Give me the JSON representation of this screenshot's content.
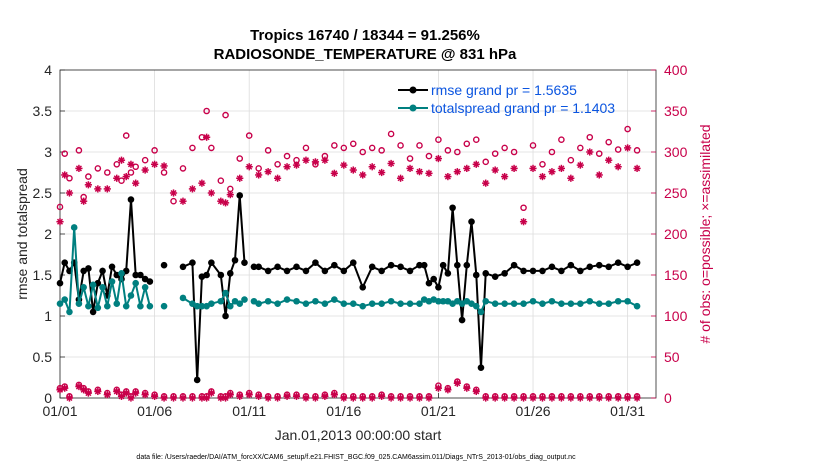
{
  "chart_data": {
    "type": "line",
    "title": "Tropics 16740 / 18344 = 91.256%",
    "subtitle": "RADIOSONDE_TEMPERATURE @ 831 hPa",
    "xlabel": "Jan.01,2013 00:00:00 start",
    "ylabel": "rmse and totalspread",
    "ylabel_right": "# of obs: o=possible; ×=assimilated",
    "footnote": "data file: /Users/raeder/DAI/ATM_forcXX/CAM6_setup/f.e21.FHIST_BGC.f09_025.CAM6assim.011/Diags_NTrS_2013-01/obs_diag_output.nc",
    "xlim": [
      1,
      32.5
    ],
    "ylim": [
      0,
      4
    ],
    "ylim_right": [
      0,
      400
    ],
    "xticks": [
      1,
      6,
      11,
      16,
      21,
      26,
      31
    ],
    "xtick_labels": [
      "01/01",
      "01/06",
      "01/11",
      "01/16",
      "01/21",
      "01/26",
      "01/31"
    ],
    "yticks": [
      0,
      0.5,
      1,
      1.5,
      2,
      2.5,
      3,
      3.5,
      4
    ],
    "ytick_labels": [
      "0",
      "0.5",
      "1",
      "1.5",
      "2",
      "2.5",
      "3",
      "3.5",
      "4"
    ],
    "yticks_right": [
      0,
      50,
      100,
      150,
      200,
      250,
      300,
      350,
      400
    ],
    "ytick_labels_right": [
      "0",
      "50",
      "100",
      "150",
      "200",
      "250",
      "300",
      "350",
      "400"
    ],
    "grid": true,
    "legend_position": "top-right",
    "colors": {
      "rmse": "#000000",
      "spread": "#008080",
      "obs": "#c8004a",
      "legend_text": "#0b55e0"
    },
    "series": [
      {
        "name": "rmse grand pr = 1.5635",
        "axis": "left",
        "x": [
          1,
          1.25,
          1.5,
          1.75,
          2,
          2.25,
          2.5,
          2.75,
          3,
          3.25,
          3.5,
          3.75,
          4,
          4.25,
          4.5,
          4.75,
          5,
          5.25,
          5.5,
          5.75,
          6,
          6.5,
          7,
          7.5,
          8,
          8.25,
          8.5,
          8.75,
          9,
          9.5,
          9.75,
          10,
          10.25,
          10.5,
          10.75,
          11,
          11.25,
          11.5,
          12,
          12.5,
          13,
          13.5,
          14,
          14.5,
          15,
          15.5,
          16,
          16.5,
          17,
          17.5,
          18,
          18.5,
          19,
          19.5,
          20,
          20.25,
          20.5,
          20.75,
          21,
          21.25,
          21.5,
          21.75,
          22,
          22.25,
          22.5,
          22.75,
          23,
          23.25,
          23.5,
          24,
          24.5,
          25,
          25.5,
          26,
          26.5,
          27,
          27.5,
          28,
          28.5,
          29,
          29.5,
          30,
          30.5,
          31,
          31.5
        ],
        "values": [
          1.4,
          1.65,
          1.55,
          1.65,
          1.2,
          1.55,
          1.58,
          1.05,
          1.4,
          1.55,
          1.25,
          1.6,
          1.5,
          1.45,
          1.55,
          2.42,
          1.5,
          1.5,
          1.45,
          1.42,
          null,
          1.62,
          null,
          1.6,
          1.65,
          0.22,
          1.48,
          1.5,
          1.65,
          1.5,
          1.0,
          1.52,
          1.68,
          2.47,
          1.65,
          null,
          1.6,
          1.6,
          1.55,
          1.6,
          1.55,
          1.6,
          1.55,
          1.65,
          1.55,
          1.62,
          1.55,
          1.65,
          1.35,
          1.6,
          1.55,
          1.62,
          1.6,
          1.55,
          1.62,
          1.62,
          1.4,
          1.45,
          1.35,
          1.62,
          1.52,
          2.32,
          1.62,
          0.95,
          1.62,
          2.15,
          1.5,
          0.37,
          1.52,
          1.48,
          1.52,
          1.62,
          1.55,
          1.55,
          1.55,
          1.6,
          1.55,
          1.62,
          1.55,
          1.6,
          1.62,
          1.6,
          1.65,
          1.6,
          1.65
        ]
      },
      {
        "name": "totalspread grand pr = 1.1403",
        "axis": "left",
        "x": [
          1,
          1.25,
          1.5,
          1.75,
          2,
          2.25,
          2.5,
          2.75,
          3,
          3.25,
          3.5,
          3.75,
          4,
          4.25,
          4.5,
          4.75,
          5,
          5.25,
          5.5,
          5.75,
          6,
          6.5,
          7,
          7.5,
          8,
          8.25,
          8.5,
          8.75,
          9,
          9.5,
          9.75,
          10,
          10.25,
          10.5,
          10.75,
          11,
          11.25,
          11.5,
          12,
          12.5,
          13,
          13.5,
          14,
          14.5,
          15,
          15.5,
          16,
          16.5,
          17,
          17.5,
          18,
          18.5,
          19,
          19.5,
          20,
          20.25,
          20.5,
          20.75,
          21,
          21.25,
          21.5,
          21.75,
          22,
          22.25,
          22.5,
          22.75,
          23,
          23.25,
          23.5,
          24,
          24.5,
          25,
          25.5,
          26,
          26.5,
          27,
          27.5,
          28,
          28.5,
          29,
          29.5,
          30,
          30.5,
          31,
          31.5
        ],
        "values": [
          1.15,
          1.2,
          1.05,
          2.08,
          1.15,
          1.35,
          1.12,
          1.38,
          1.1,
          1.35,
          1.12,
          1.42,
          1.15,
          1.52,
          1.12,
          1.25,
          1.4,
          1.12,
          1.35,
          1.12,
          null,
          1.12,
          null,
          1.22,
          1.15,
          1.12,
          1.12,
          1.12,
          1.15,
          1.18,
          1.28,
          1.12,
          1.18,
          1.15,
          1.2,
          null,
          1.18,
          1.15,
          1.18,
          1.15,
          1.2,
          1.18,
          1.15,
          1.18,
          1.15,
          1.2,
          1.15,
          1.15,
          1.12,
          1.15,
          1.15,
          1.18,
          1.15,
          1.15,
          1.15,
          1.2,
          1.18,
          1.2,
          1.18,
          1.18,
          1.18,
          1.15,
          1.18,
          1.15,
          1.18,
          1.15,
          1.12,
          1.05,
          1.18,
          1.15,
          1.15,
          1.15,
          1.15,
          1.18,
          1.15,
          1.18,
          1.15,
          1.15,
          1.15,
          1.18,
          1.15,
          1.15,
          1.18,
          1.18,
          1.12
        ]
      },
      {
        "name": "possible",
        "axis": "right",
        "marker": "o",
        "x": [
          1,
          1.25,
          1.5,
          2,
          2.25,
          2.5,
          3,
          3.5,
          4,
          4.25,
          4.5,
          4.75,
          5,
          5.5,
          6,
          6.5,
          7,
          7.5,
          8,
          8.5,
          8.75,
          9,
          9.5,
          9.75,
          10,
          10.5,
          11,
          11.5,
          12,
          12.5,
          13,
          13.5,
          14,
          14.5,
          15,
          15.5,
          16,
          16.5,
          17,
          17.5,
          18,
          18.5,
          19,
          19.5,
          20,
          20.5,
          21,
          21.5,
          22,
          22.5,
          23,
          23.5,
          24,
          24.5,
          25,
          25.5,
          26,
          26.5,
          27,
          27.5,
          28,
          28.5,
          29,
          29.5,
          30,
          30.5,
          31,
          31.5
        ],
        "values": [
          233,
          298,
          268,
          302,
          245,
          270,
          280,
          275,
          285,
          265,
          320,
          275,
          282,
          290,
          302,
          275,
          240,
          280,
          305,
          318,
          350,
          305,
          265,
          345,
          255,
          292,
          320,
          280,
          302,
          285,
          295,
          290,
          305,
          285,
          295,
          308,
          305,
          310,
          300,
          305,
          302,
          322,
          308,
          292,
          308,
          295,
          315,
          302,
          300,
          310,
          315,
          288,
          298,
          305,
          300,
          232,
          308,
          285,
          300,
          315,
          290,
          305,
          318,
          298,
          312,
          303,
          328,
          302
        ]
      },
      {
        "name": "assimilated",
        "axis": "right",
        "marker": "x",
        "x": [
          1,
          1.25,
          1.5,
          2,
          2.25,
          2.5,
          3,
          3.5,
          4,
          4.25,
          4.5,
          4.75,
          5,
          5.5,
          6,
          6.5,
          7,
          7.5,
          8,
          8.5,
          8.75,
          9,
          9.5,
          9.75,
          10,
          10.5,
          11,
          11.5,
          12,
          12.5,
          13,
          13.5,
          14,
          14.5,
          15,
          15.5,
          16,
          16.5,
          17,
          17.5,
          18,
          18.5,
          19,
          19.5,
          20,
          20.5,
          21,
          21.5,
          22,
          22.5,
          23,
          23.5,
          24,
          24.5,
          25,
          25.5,
          26,
          26.5,
          27,
          27.5,
          28,
          28.5,
          29,
          29.5,
          30,
          30.5,
          31,
          31.5
        ],
        "values": [
          215,
          272,
          250,
          280,
          240,
          260,
          255,
          255,
          268,
          290,
          270,
          285,
          262,
          278,
          285,
          283,
          250,
          240,
          255,
          262,
          318,
          250,
          240,
          238,
          248,
          268,
          282,
          272,
          276,
          268,
          282,
          284,
          290,
          288,
          290,
          274,
          284,
          278,
          272,
          282,
          275,
          286,
          268,
          280,
          276,
          274,
          292,
          270,
          276,
          280,
          285,
          262,
          278,
          270,
          280,
          215,
          280,
          270,
          276,
          280,
          268,
          284,
          300,
          272,
          290,
          282,
          305,
          280
        ]
      },
      {
        "name": "possible-low",
        "axis": "right",
        "marker": "o",
        "x": [
          1,
          1.25,
          1.5,
          2,
          2.25,
          2.5,
          3,
          3.5,
          4,
          4.25,
          4.5,
          4.75,
          5,
          5.5,
          6,
          6.5,
          7,
          7.5,
          8,
          8.5,
          8.75,
          9,
          9.5,
          9.75,
          10,
          10.5,
          11,
          11.5,
          12,
          12.5,
          13,
          13.5,
          14,
          14.5,
          15,
          15.5,
          16,
          16.5,
          17,
          17.5,
          18,
          18.5,
          19,
          19.5,
          20,
          20.5,
          21,
          21.5,
          22,
          22.5,
          23,
          23.5,
          24,
          24.5,
          25,
          25.5,
          26,
          26.5,
          27,
          27.5,
          28,
          28.5,
          29,
          29.5,
          30,
          30.5,
          31,
          31.5
        ],
        "values": [
          12,
          14,
          2,
          16,
          12,
          8,
          10,
          6,
          10,
          4,
          8,
          2,
          8,
          6,
          4,
          2,
          2,
          2,
          2,
          2,
          2,
          8,
          2,
          2,
          6,
          4,
          6,
          4,
          2,
          2,
          4,
          4,
          2,
          2,
          4,
          6,
          2,
          2,
          2,
          2,
          4,
          2,
          2,
          2,
          2,
          2,
          15,
          12,
          20,
          14,
          10,
          2,
          2,
          2,
          2,
          2,
          2,
          2,
          2,
          2,
          2,
          2,
          2,
          2,
          2,
          2,
          2,
          2
        ]
      },
      {
        "name": "assimilated-low",
        "axis": "right",
        "marker": "x",
        "x": [
          1,
          1.25,
          1.5,
          2,
          2.25,
          2.5,
          3,
          3.5,
          4,
          4.25,
          4.5,
          4.75,
          5,
          5.5,
          6,
          6.5,
          7,
          7.5,
          8,
          8.5,
          8.75,
          9,
          9.5,
          9.75,
          10,
          10.5,
          11,
          11.5,
          12,
          12.5,
          13,
          13.5,
          14,
          14.5,
          15,
          15.5,
          16,
          16.5,
          17,
          17.5,
          18,
          18.5,
          19,
          19.5,
          20,
          20.5,
          21,
          21.5,
          22,
          22.5,
          23,
          23.5,
          24,
          24.5,
          25,
          25.5,
          26,
          26.5,
          27,
          27.5,
          28,
          28.5,
          29,
          29.5,
          30,
          30.5,
          31,
          31.5
        ],
        "values": [
          10,
          12,
          0,
          14,
          10,
          6,
          8,
          4,
          8,
          2,
          6,
          0,
          6,
          4,
          2,
          0,
          0,
          0,
          0,
          0,
          0,
          6,
          0,
          0,
          4,
          2,
          4,
          2,
          0,
          0,
          2,
          2,
          0,
          0,
          2,
          4,
          0,
          0,
          0,
          0,
          2,
          0,
          0,
          0,
          0,
          0,
          12,
          10,
          18,
          12,
          8,
          0,
          0,
          0,
          0,
          0,
          0,
          0,
          0,
          0,
          0,
          0,
          0,
          0,
          0,
          0,
          0,
          0
        ]
      }
    ]
  }
}
